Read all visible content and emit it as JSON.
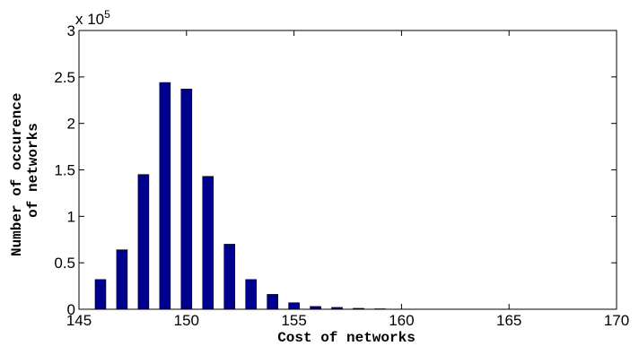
{
  "chart_data": {
    "type": "bar",
    "title": "",
    "xlabel": "Cost of networks",
    "ylabel_lines": [
      "Number of occurence",
      "of networks"
    ],
    "y_multiplier": "x 10",
    "y_multiplier_exp": "5",
    "xlim": [
      145,
      170
    ],
    "ylim": [
      0,
      3
    ],
    "x_ticks": [
      145,
      150,
      155,
      160,
      165,
      170
    ],
    "y_ticks": [
      0,
      0.5,
      1,
      1.5,
      2,
      2.5,
      3
    ],
    "y_tick_labels": [
      "0",
      "0.5",
      "1",
      "1.5",
      "2",
      "2.5",
      "3"
    ],
    "x": [
      146,
      147,
      148,
      149,
      150,
      151,
      152,
      153,
      154,
      155,
      156,
      157,
      158,
      159,
      160
    ],
    "values": [
      0.32,
      0.64,
      1.45,
      2.44,
      2.37,
      1.43,
      0.7,
      0.32,
      0.16,
      0.07,
      0.03,
      0.02,
      0.01,
      0.005,
      0.002
    ],
    "bar_color": "#00008F",
    "grid": false
  }
}
